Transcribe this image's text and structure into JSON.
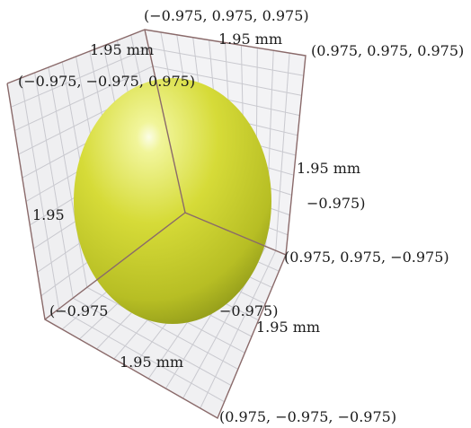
{
  "figure": {
    "box_edge_color": "#8a6a6a",
    "grid_line_color": "#c9c9cf",
    "wall_fill": "#efeff1",
    "sphere_color": "#d6db38",
    "sphere_highlight": "#fbfde6",
    "sphere_shadow": "#98a11c"
  },
  "labels": {
    "corner_top_back": "(−0.975, 0.975, 0.975)",
    "corner_top_right": "(0.975, 0.975, 0.975)",
    "corner_top_left": "(−0.975, −0.975, 0.975)",
    "corner_mid_right": "(0.975, 0.975, −0.975)",
    "corner_bottom": "(0.975, −0.975, −0.975)",
    "partial_right": "−0.975)",
    "partial_bottom_left": "(−0.975",
    "partial_bottom_mid": "−0.975)",
    "dim_top_left": "1.95 mm",
    "dim_top_right": "1.95 mm",
    "dim_right": "1.95 mm",
    "dim_left": "1.95",
    "dim_bottom_right": "1.95 mm",
    "dim_bottom": "1.95 mm"
  }
}
